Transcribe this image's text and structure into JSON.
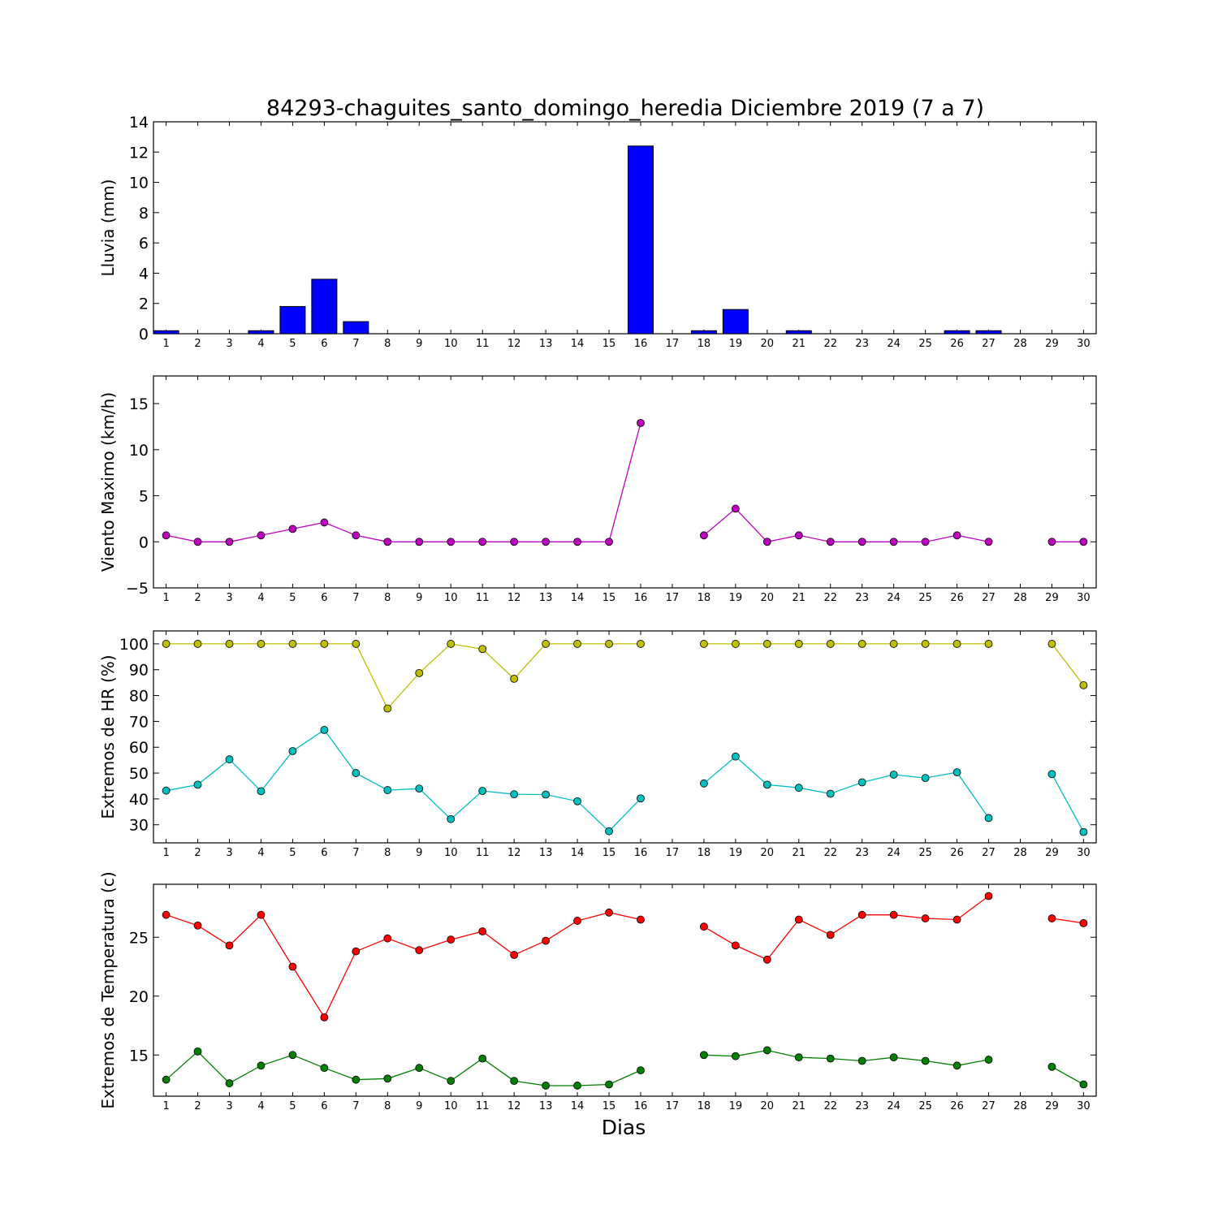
{
  "figure": {
    "title": "84293-chaguites_santo_domingo_heredia Diciembre 2019  (7 a 7)",
    "xlabel": "Dias"
  },
  "chart_data": [
    {
      "type": "bar",
      "ylabel": "Lluvia (mm)",
      "ylim": [
        0,
        14
      ],
      "yticks": [
        0,
        2,
        4,
        6,
        8,
        10,
        12,
        14
      ],
      "categories": [
        1,
        2,
        3,
        4,
        5,
        6,
        7,
        8,
        9,
        10,
        11,
        12,
        13,
        14,
        15,
        16,
        17,
        18,
        19,
        20,
        21,
        22,
        23,
        24,
        25,
        26,
        27,
        28,
        29,
        30
      ],
      "values": [
        0.2,
        0,
        0,
        0.2,
        1.8,
        3.6,
        0.8,
        0,
        0,
        0,
        0,
        0,
        0,
        0,
        0,
        12.4,
        null,
        0.2,
        1.6,
        0,
        0.2,
        0,
        0,
        0,
        0,
        0.2,
        0.2,
        null,
        0,
        0
      ],
      "color": "#0000ff",
      "grid": false
    },
    {
      "type": "line",
      "ylabel": "Viento Maximo (km/h)",
      "ylim": [
        -5,
        18
      ],
      "yticks": [
        -5,
        0,
        5,
        10,
        15
      ],
      "x": [
        1,
        2,
        3,
        4,
        5,
        6,
        7,
        8,
        9,
        10,
        11,
        12,
        13,
        14,
        15,
        16,
        17,
        18,
        19,
        20,
        21,
        22,
        23,
        24,
        25,
        26,
        27,
        28,
        29,
        30
      ],
      "series": [
        {
          "values": [
            0.7,
            0,
            0,
            0.7,
            1.4,
            2.1,
            0.7,
            0,
            0,
            0,
            0,
            0,
            0,
            0,
            0,
            12.9,
            null,
            0.7,
            3.6,
            0,
            0.7,
            0,
            0,
            0,
            0,
            0.7,
            0,
            null,
            0,
            0
          ],
          "color": "#bf00bf"
        }
      ],
      "grid": false
    },
    {
      "type": "line",
      "ylabel": "Extremos de HR (%)",
      "ylim": [
        23,
        105
      ],
      "yticks": [
        30,
        40,
        50,
        60,
        70,
        80,
        90,
        100
      ],
      "x": [
        1,
        2,
        3,
        4,
        5,
        6,
        7,
        8,
        9,
        10,
        11,
        12,
        13,
        14,
        15,
        16,
        17,
        18,
        19,
        20,
        21,
        22,
        23,
        24,
        25,
        26,
        27,
        28,
        29,
        30
      ],
      "series": [
        {
          "values": [
            100,
            100,
            100,
            100,
            100,
            100,
            100,
            75,
            88.7,
            100,
            98,
            86.5,
            100,
            100,
            100,
            100,
            null,
            100,
            100,
            100,
            100,
            100,
            100,
            100,
            100,
            100,
            100,
            null,
            100,
            84
          ],
          "color": "#bfbf00"
        },
        {
          "values": [
            43.2,
            45.5,
            55.3,
            43,
            58.5,
            66.7,
            50,
            43.4,
            44,
            32.2,
            43.1,
            41.8,
            41.7,
            39.1,
            27.5,
            40.2,
            null,
            46,
            56.4,
            45.5,
            44.3,
            42,
            46.4,
            49.4,
            48.1,
            50.3,
            32.6,
            null,
            49.6,
            27.2
          ],
          "color": "#00bfbf"
        }
      ],
      "grid": false
    },
    {
      "type": "line",
      "ylabel": "Extremos de Temperatura (c)",
      "ylim": [
        11.5,
        29.5
      ],
      "yticks": [
        15,
        20,
        25
      ],
      "x": [
        1,
        2,
        3,
        4,
        5,
        6,
        7,
        8,
        9,
        10,
        11,
        12,
        13,
        14,
        15,
        16,
        17,
        18,
        19,
        20,
        21,
        22,
        23,
        24,
        25,
        26,
        27,
        28,
        29,
        30
      ],
      "series": [
        {
          "values": [
            26.9,
            26,
            24.3,
            26.9,
            22.5,
            18.2,
            23.8,
            24.9,
            23.9,
            24.8,
            25.5,
            23.5,
            24.7,
            26.4,
            27.1,
            26.5,
            null,
            25.9,
            24.3,
            23.1,
            26.5,
            25.2,
            26.9,
            26.9,
            26.6,
            26.5,
            28.5,
            null,
            26.6,
            26.2
          ],
          "color": "#ff0000"
        },
        {
          "values": [
            12.9,
            15.3,
            12.6,
            14.1,
            15,
            13.9,
            12.9,
            13,
            13.9,
            12.8,
            14.7,
            12.8,
            12.4,
            12.4,
            12.5,
            13.7,
            null,
            15,
            14.9,
            15.4,
            14.8,
            14.7,
            14.5,
            14.8,
            14.5,
            14.1,
            14.6,
            null,
            14,
            12.5
          ],
          "color": "#007f00"
        }
      ],
      "grid": false
    }
  ]
}
